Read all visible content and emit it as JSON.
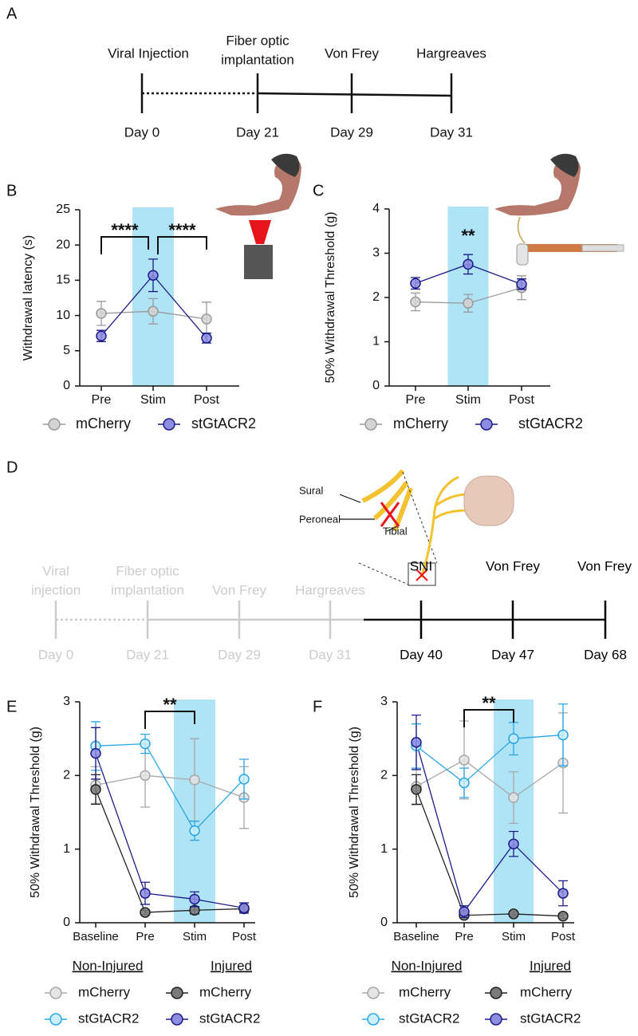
{
  "panel_a": {
    "label": "A",
    "events": [
      {
        "name": [
          "Viral Injection"
        ],
        "day": "Day 0"
      },
      {
        "name": [
          "Fiber optic",
          "implantation"
        ],
        "day": "Day 21"
      },
      {
        "name": [
          "Von Frey"
        ],
        "day": "Day 29"
      },
      {
        "name": [
          "Hargreaves"
        ],
        "day": "Day 31"
      }
    ]
  },
  "chart_data": [
    {
      "type": "line",
      "panel_label": "B",
      "y_label": "Withdrawal latency (s)",
      "categories": [
        "Pre",
        "Stim",
        "Post"
      ],
      "ylim": [
        0,
        25
      ],
      "yticks": [
        0,
        5,
        10,
        15,
        20,
        25
      ],
      "highlight": {
        "category": "Stim",
        "color": "#aee4f6"
      },
      "annotations": [
        {
          "text": "****",
          "from": "Pre",
          "to": "Stim"
        },
        {
          "text": "****",
          "from": "Stim",
          "to": "Post"
        }
      ],
      "series": [
        {
          "name": "mCherry",
          "color": "#9a9a9a",
          "fill": "#d4d4d4",
          "values": [
            10.3,
            10.6,
            9.5
          ],
          "errors": [
            1.7,
            1.8,
            2.4
          ]
        },
        {
          "name": "stGtACR2",
          "color": "#1c1c8a",
          "fill": "#8c8ce0",
          "values": [
            7.1,
            15.7,
            6.8
          ],
          "errors": [
            0.8,
            2.3,
            0.7
          ]
        }
      ]
    },
    {
      "type": "line",
      "panel_label": "C",
      "y_label": "50% Withdrawal Threshold (g)",
      "categories": [
        "Pre",
        "Stim",
        "Post"
      ],
      "ylim": [
        0,
        4
      ],
      "yticks": [
        0,
        1,
        2,
        3,
        4
      ],
      "highlight": {
        "category": "Stim",
        "color": "#aee4f6"
      },
      "annotations": [
        {
          "text": "**",
          "category": "Stim"
        }
      ],
      "series": [
        {
          "name": "mCherry",
          "color": "#9a9a9a",
          "fill": "#d4d4d4",
          "values": [
            1.9,
            1.87,
            2.22
          ],
          "errors": [
            0.2,
            0.2,
            0.27
          ]
        },
        {
          "name": "stGtACR2",
          "color": "#1c1c8a",
          "fill": "#8c8ce0",
          "values": [
            2.32,
            2.75,
            2.3
          ],
          "errors": [
            0.13,
            0.22,
            0.12
          ]
        }
      ]
    },
    {
      "type": "line",
      "panel_label": "E",
      "y_label": "50% Withdrawal Threshold (g)",
      "categories": [
        "Baseline",
        "Pre",
        "Stim",
        "Post"
      ],
      "ylim": [
        0,
        3
      ],
      "yticks": [
        0,
        1,
        2,
        3
      ],
      "highlight": {
        "category": "Stim",
        "color": "#aee4f6"
      },
      "annotations": [
        {
          "text": "**",
          "from": "Pre",
          "to": "Stim"
        }
      ],
      "groups": [
        {
          "name": "Non-Injured",
          "series": [
            {
              "name": "mCherry",
              "color": "#a8a8a8",
              "fill": "#e4e4e4",
              "values": [
                1.87,
                2.0,
                1.94,
                1.7
              ],
              "errors": [
                0.25,
                0.43,
                0.56,
                0.42
              ]
            },
            {
              "name": "stGtACR2",
              "color": "#2aa6e6",
              "fill": "#cdeefb",
              "values": [
                2.4,
                2.43,
                1.25,
                1.95
              ],
              "errors": [
                0.33,
                0.13,
                0.13,
                0.27
              ]
            }
          ]
        },
        {
          "name": "Injured",
          "series": [
            {
              "name": "mCherry",
              "color": "#222222",
              "fill": "#7a7a7a",
              "values": [
                1.81,
                0.14,
                0.17,
                0.19
              ],
              "errors": [
                0.2,
                0.03,
                0.05,
                0.04
              ]
            },
            {
              "name": "stGtACR2",
              "color": "#1c1c8a",
              "fill": "#8c8ce0",
              "values": [
                2.3,
                0.4,
                0.32,
                0.2
              ],
              "errors": [
                0.35,
                0.15,
                0.1,
                0.07
              ]
            }
          ]
        }
      ]
    },
    {
      "type": "line",
      "panel_label": "F",
      "y_label": "50% Withdrawal Threshold (g)",
      "categories": [
        "Baseline",
        "Pre",
        "Stim",
        "Post"
      ],
      "ylim": [
        0,
        3
      ],
      "yticks": [
        0,
        1,
        2,
        3
      ],
      "highlight": {
        "category": "Stim",
        "color": "#aee4f6"
      },
      "annotations": [
        {
          "text": "**",
          "from": "Pre",
          "to": "Stim"
        }
      ],
      "groups": [
        {
          "name": "Non-Injured",
          "series": [
            {
              "name": "mCherry",
              "color": "#a8a8a8",
              "fill": "#e4e4e4",
              "values": [
                1.85,
                2.21,
                1.7,
                2.17
              ],
              "errors": [
                0.25,
                0.53,
                0.35,
                0.68
              ]
            },
            {
              "name": "stGtACR2",
              "color": "#2aa6e6",
              "fill": "#cdeefb",
              "values": [
                2.4,
                1.9,
                2.5,
                2.55
              ],
              "errors": [
                0.3,
                0.2,
                0.22,
                0.42
              ]
            }
          ]
        },
        {
          "name": "Injured",
          "series": [
            {
              "name": "mCherry",
              "color": "#222222",
              "fill": "#7a7a7a",
              "values": [
                1.81,
                0.1,
                0.12,
                0.09
              ],
              "errors": [
                0.2,
                0.03,
                0.03,
                0.03
              ]
            },
            {
              "name": "stGtACR2",
              "color": "#1c1c8a",
              "fill": "#8c8ce0",
              "values": [
                2.45,
                0.15,
                1.07,
                0.4
              ],
              "errors": [
                0.37,
                0.08,
                0.17,
                0.17
              ]
            }
          ]
        }
      ]
    }
  ],
  "panel_d": {
    "label": "D",
    "inset_labels": [
      "Sural",
      "Peroneal",
      "Tibial"
    ],
    "events": [
      {
        "name": [
          "Viral",
          "injection"
        ],
        "day": "Day 0",
        "color": "#cccccc"
      },
      {
        "name": [
          "Fiber optic",
          "implantation"
        ],
        "day": "Day 21",
        "color": "#cccccc"
      },
      {
        "name": [
          "Von Frey"
        ],
        "day": "Day 29",
        "color": "#cccccc"
      },
      {
        "name": [
          "Hargreaves"
        ],
        "day": "Day 31",
        "color": "#cccccc"
      },
      {
        "name": [
          "SNI"
        ],
        "day": "Day 40",
        "color": "#000000"
      },
      {
        "name": [
          "Von Frey"
        ],
        "day": "Day 47",
        "color": "#000000"
      },
      {
        "name": [
          "Von Frey"
        ],
        "day": "Day 68",
        "color": "#000000"
      }
    ]
  }
}
